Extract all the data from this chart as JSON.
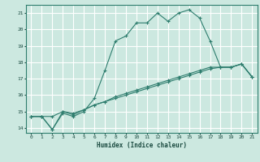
{
  "title": "",
  "xlabel": "Humidex (Indice chaleur)",
  "bg_color": "#cce8e0",
  "grid_color": "#ffffff",
  "line_color": "#2e7d6e",
  "xlim": [
    -0.5,
    21.5
  ],
  "ylim": [
    13.7,
    21.5
  ],
  "xticks": [
    0,
    1,
    2,
    3,
    4,
    5,
    6,
    7,
    8,
    9,
    10,
    11,
    12,
    13,
    14,
    15,
    16,
    17,
    18,
    19,
    20,
    21
  ],
  "yticks": [
    14,
    15,
    16,
    17,
    18,
    19,
    20,
    21
  ],
  "line1_x": [
    0,
    1,
    2,
    3,
    4,
    5,
    6,
    7,
    8,
    9,
    10,
    11,
    12,
    13,
    14,
    15,
    16,
    17,
    18,
    19,
    20,
    21
  ],
  "line1_y": [
    14.7,
    14.7,
    13.9,
    14.9,
    14.7,
    15.0,
    15.8,
    17.5,
    19.3,
    19.6,
    20.4,
    20.4,
    21.0,
    20.5,
    21.0,
    21.2,
    20.7,
    19.3,
    17.7,
    17.7,
    17.9,
    17.1
  ],
  "line2_x": [
    0,
    1,
    2,
    3,
    4,
    5,
    6,
    7,
    8,
    9,
    10,
    11,
    12,
    13,
    14,
    15,
    16,
    17,
    18,
    19,
    20,
    21
  ],
  "line2_y": [
    14.7,
    14.7,
    14.7,
    15.0,
    14.8,
    15.1,
    15.4,
    15.6,
    15.8,
    16.0,
    16.2,
    16.4,
    16.6,
    16.8,
    17.0,
    17.2,
    17.4,
    17.6,
    17.7,
    17.7,
    17.9,
    17.1
  ],
  "line3_x": [
    0,
    1,
    2,
    3,
    4,
    5,
    6,
    7,
    8,
    9,
    10,
    11,
    12,
    13,
    14,
    15,
    16,
    17,
    18,
    19,
    20,
    21
  ],
  "line3_y": [
    14.7,
    14.7,
    13.9,
    15.0,
    14.9,
    15.1,
    15.4,
    15.6,
    15.9,
    16.1,
    16.3,
    16.5,
    16.7,
    16.9,
    17.1,
    17.3,
    17.5,
    17.7,
    17.7,
    17.7,
    17.9,
    17.1
  ]
}
